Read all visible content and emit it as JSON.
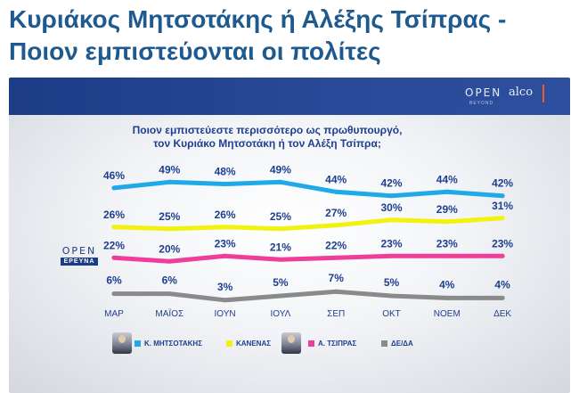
{
  "headline": {
    "line1": "Κυριάκος Μητσοτάκης ή Αλέξης Τσίπρας -",
    "line2": "Ποιον εμπιστεύονται οι πολίτες"
  },
  "branding": {
    "open_logo_word": "OPEN",
    "open_logo_sub": "BEYOND",
    "alco_logo": "alco",
    "survey_logo_word": "OPEN",
    "survey_logo_tag": "ΕΡΕΥΝΑ"
  },
  "colors": {
    "headline": "#1f5a8f",
    "topbar": "#294a98",
    "question": "#1e3f8f",
    "mitsotakis": "#1fa9e6",
    "kanenas": "#f2f20f",
    "tsipras": "#ef3d9c",
    "dk_da": "#8a8a8a"
  },
  "chart_data": {
    "type": "line",
    "title": "Ποιον εμπιστεύεστε περισσότερο ως πρωθυπουργό, τον Κυριάκο Μητσοτάκη ή τον Αλέξη Τσίπρα;",
    "title_lines": [
      "Ποιον εμπιστεύεστε περισσότερο ως πρωθυπουργό,",
      "τον Κυριάκο Μητσοτάκη ή τον Αλέξη Τσίπρα;"
    ],
    "xlabel": "",
    "ylabel": "",
    "categories": [
      "ΜΑΡ",
      "ΜΑΪΟΣ",
      "ΙΟΥΝ",
      "ΙΟΥΛ",
      "ΣΕΠ",
      "ΟΚΤ",
      "ΝΟΕΜ",
      "ΔΕΚ"
    ],
    "series": [
      {
        "name": "Κ. ΜΗΤΣΟΤΑΚΗΣ",
        "color": "#1fa9e6",
        "values": [
          46,
          49,
          48,
          49,
          44,
          42,
          44,
          42
        ]
      },
      {
        "name": "ΚΑΝΕΝΑΣ",
        "color": "#f2f20f",
        "values": [
          26,
          25,
          26,
          25,
          27,
          30,
          29,
          31
        ]
      },
      {
        "name": "Α. ΤΣΙΠΡΑΣ",
        "color": "#ef3d9c",
        "values": [
          22,
          20,
          23,
          21,
          22,
          23,
          23,
          23
        ]
      },
      {
        "name": "ΔΕ/ΔΑ",
        "color": "#8a8a8a",
        "values": [
          6,
          6,
          3,
          5,
          7,
          5,
          4,
          4
        ]
      }
    ],
    "value_suffix": "%",
    "grid": false,
    "legend_position": "bottom"
  }
}
